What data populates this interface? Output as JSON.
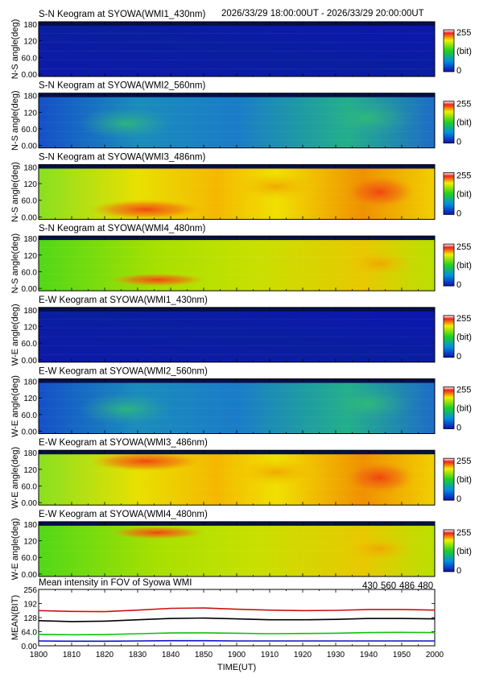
{
  "header_time_range": "2026/33/29 18:00:00UT - 2026/33/29 20:00:00UT",
  "colors": {
    "line_430": "#1010c8",
    "line_560": "#10c010",
    "line_486": "#d01010",
    "line_480": "#000000"
  },
  "colorbar": {
    "max_label": "255",
    "unit_label": "(bit)",
    "min_label": "0"
  },
  "keograms": [
    {
      "title": "S-N Keogram at SYOWA(WMI1_430nm)",
      "ylabel": "N-S angle(deg)",
      "yticks": [
        "180",
        "120",
        "60.0",
        "0.00"
      ],
      "intensity": "very-low"
    },
    {
      "title": "S-N Keogram at SYOWA(WMI2_560nm)",
      "ylabel": "N-S angle(deg)",
      "yticks": [
        "180",
        "120",
        "60.0",
        "0.00"
      ],
      "intensity": "low"
    },
    {
      "title": "S-N Keogram at SYOWA(WMI3_486nm)",
      "ylabel": "N-S angle(deg)",
      "yticks": [
        "180",
        "120",
        "60.0",
        "0.00"
      ],
      "intensity": "high"
    },
    {
      "title": "S-N Keogram at SYOWA(WMI4_480nm)",
      "ylabel": "N-S angle(deg)",
      "yticks": [
        "180",
        "120",
        "60.0",
        "0.00"
      ],
      "intensity": "medium"
    },
    {
      "title": "E-W Keogram at SYOWA(WMI1_430nm)",
      "ylabel": "W-E angle(deg)",
      "yticks": [
        "180",
        "120",
        "60.0",
        "0.00"
      ],
      "intensity": "very-low"
    },
    {
      "title": "E-W Keogram at SYOWA(WMI2_560nm)",
      "ylabel": "W-E angle(deg)",
      "yticks": [
        "180",
        "120",
        "60.0",
        "0.00"
      ],
      "intensity": "low"
    },
    {
      "title": "E-W Keogram at SYOWA(WMI3_486nm)",
      "ylabel": "W-E angle(deg)",
      "yticks": [
        "180",
        "120",
        "60.0",
        "0.00"
      ],
      "intensity": "high"
    },
    {
      "title": "E-W Keogram at SYOWA(WMI4_480nm)",
      "ylabel": "W-E angle(deg)",
      "yticks": [
        "180",
        "120",
        "60.0",
        "0.00"
      ],
      "intensity": "medium"
    }
  ],
  "chart_data": {
    "type": "line",
    "title": "Mean intensity in FOV of Syowa WMI",
    "xlabel": "TIME(UT)",
    "ylabel": "MEAN(BIT)",
    "x_ticks": [
      "1800",
      "1810",
      "1820",
      "1830",
      "1840",
      "1850",
      "1900",
      "1910",
      "1920",
      "1930",
      "1940",
      "1950",
      "2000"
    ],
    "y_ticks": [
      "256",
      "192",
      "128",
      "64.0",
      "0.00"
    ],
    "ylim": [
      0,
      256
    ],
    "x": [
      "1800",
      "1810",
      "1820",
      "1830",
      "1840",
      "1850",
      "1900",
      "1910",
      "1920",
      "1930",
      "1940",
      "1950",
      "2000"
    ],
    "series": [
      {
        "name": "430",
        "values": [
          22,
          21,
          21,
          22,
          23,
          23,
          22,
          22,
          22,
          22,
          22,
          22,
          22
        ]
      },
      {
        "name": "560",
        "values": [
          52,
          50,
          51,
          55,
          58,
          59,
          57,
          55,
          56,
          57,
          60,
          61,
          60
        ]
      },
      {
        "name": "486",
        "values": [
          160,
          156,
          155,
          162,
          170,
          172,
          166,
          162,
          160,
          161,
          165,
          165,
          162
        ]
      },
      {
        "name": "480",
        "values": [
          114,
          110,
          112,
          118,
          124,
          126,
          122,
          118,
          118,
          120,
          124,
          124,
          122
        ]
      }
    ],
    "grid": false,
    "legend_position": "top-right"
  }
}
